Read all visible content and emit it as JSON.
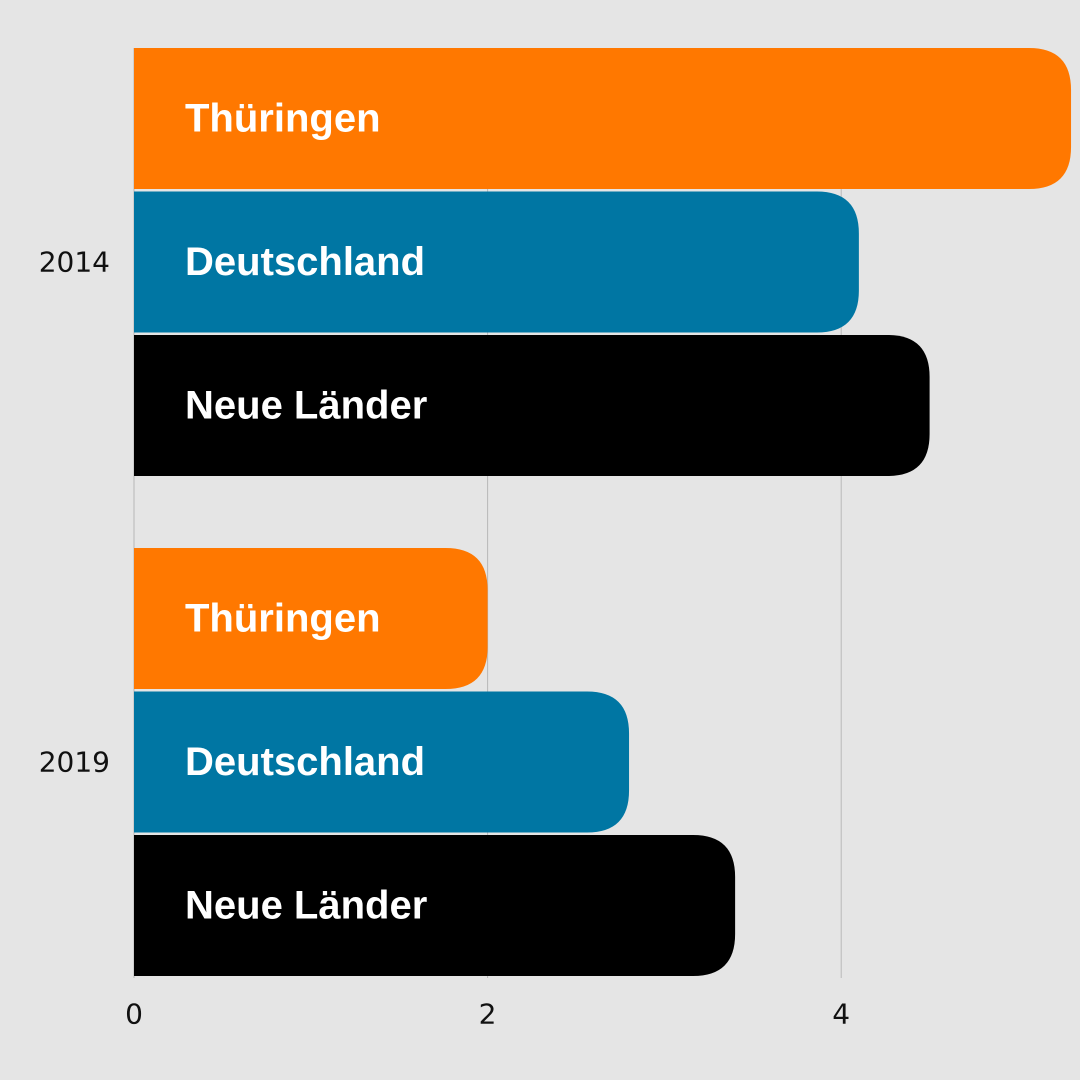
{
  "chart_data": {
    "type": "bar",
    "orientation": "horizontal",
    "categories": [
      "2014",
      "2019"
    ],
    "series": [
      {
        "name": "Thüringen",
        "color": "#ff7800",
        "values": [
          5.3,
          2.0
        ]
      },
      {
        "name": "Deutschland",
        "color": "#0076a3",
        "values": [
          4.1,
          2.8
        ]
      },
      {
        "name": "Neue Länder",
        "color": "#000000",
        "values": [
          4.5,
          3.4
        ]
      }
    ],
    "xlim": [
      0,
      5.3
    ],
    "xticks": [
      0,
      2,
      4
    ],
    "title": "",
    "xlabel": "",
    "ylabel": "",
    "grid": true,
    "legend": "none (series names printed inside bars)"
  }
}
